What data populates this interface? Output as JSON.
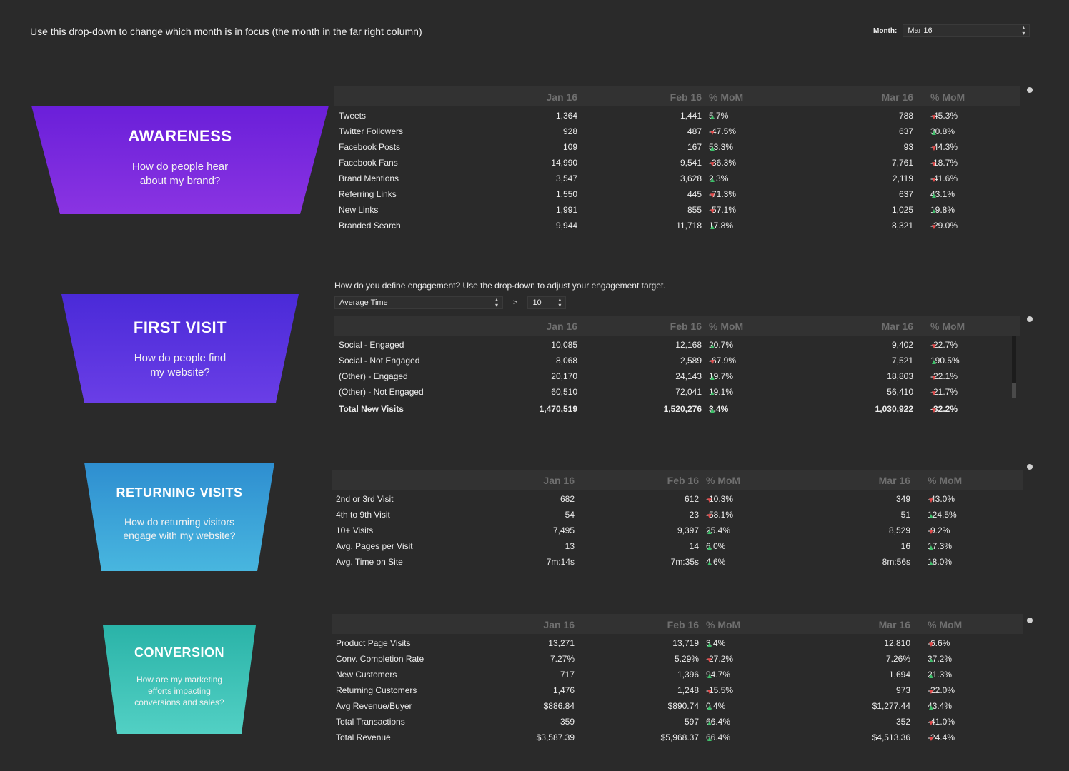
{
  "header": {
    "instruction": "Use this drop-down to change which month is in focus (the month in the far right column)",
    "month_label": "Month:",
    "month_value": "Mar 16"
  },
  "funnels": [
    {
      "title": "AWARENESS",
      "subtitle_l1": "How do people hear",
      "subtitle_l2": "about my brand?",
      "color_top": "#6a1fd9",
      "color_bottom": "#8a34e2"
    },
    {
      "title": "FIRST VISIT",
      "subtitle_l1": "How do people find",
      "subtitle_l2": "my website?",
      "color_top": "#4a2ad8",
      "color_bottom": "#6a3ee6"
    },
    {
      "title": "RETURNING VISITS",
      "subtitle_l1": "How do returning visitors",
      "subtitle_l2": "engage with my website?",
      "color_top": "#2e8ed0",
      "color_bottom": "#48b6df"
    },
    {
      "title": "CONVERSION",
      "subtitle_l1": "How are my marketing",
      "subtitle_l2": "efforts impacting",
      "subtitle_l3": "conversions and sales?",
      "color_top": "#2ab3a8",
      "color_bottom": "#52d0c4"
    }
  ],
  "columns": {
    "jan": "Jan 16",
    "feb": "Feb 16",
    "mom": "% MoM",
    "mar": "Mar 16"
  },
  "engagement": {
    "question": "How do you define engagement? Use the drop-down to adjust your engagement target.",
    "metric": "Average Time",
    "operator": ">",
    "value": "10"
  },
  "awareness_rows": [
    {
      "label": "Tweets",
      "jan": "1,364",
      "feb": "1,441",
      "feb_dir": "up",
      "feb_pct": "5.7%",
      "mar": "788",
      "mar_dir": "dn",
      "mar_pct": "-45.3%"
    },
    {
      "label": "Twitter Followers",
      "jan": "928",
      "feb": "487",
      "feb_dir": "dn",
      "feb_pct": "-47.5%",
      "mar": "637",
      "mar_dir": "up",
      "mar_pct": "30.8%"
    },
    {
      "label": "Facebook Posts",
      "jan": "109",
      "feb": "167",
      "feb_dir": "up",
      "feb_pct": "53.3%",
      "mar": "93",
      "mar_dir": "dn",
      "mar_pct": "-44.3%"
    },
    {
      "label": "Facebook Fans",
      "jan": "14,990",
      "feb": "9,541",
      "feb_dir": "dn",
      "feb_pct": "-36.3%",
      "mar": "7,761",
      "mar_dir": "dn",
      "mar_pct": "-18.7%"
    },
    {
      "label": "Brand Mentions",
      "jan": "3,547",
      "feb": "3,628",
      "feb_dir": "up",
      "feb_pct": "2.3%",
      "mar": "2,119",
      "mar_dir": "dn",
      "mar_pct": "-41.6%"
    },
    {
      "label": "Referring Links",
      "jan": "1,550",
      "feb": "445",
      "feb_dir": "dn",
      "feb_pct": "-71.3%",
      "mar": "637",
      "mar_dir": "up",
      "mar_pct": "43.1%"
    },
    {
      "label": "New Links",
      "jan": "1,991",
      "feb": "855",
      "feb_dir": "dn",
      "feb_pct": "-57.1%",
      "mar": "1,025",
      "mar_dir": "up",
      "mar_pct": "19.8%"
    },
    {
      "label": "Branded Search",
      "jan": "9,944",
      "feb": "11,718",
      "feb_dir": "up",
      "feb_pct": "17.8%",
      "mar": "8,321",
      "mar_dir": "dn",
      "mar_pct": "-29.0%"
    }
  ],
  "firstvisit_rows": [
    {
      "label": "Social - Engaged",
      "jan": "10,085",
      "feb": "12,168",
      "feb_dir": "up",
      "feb_pct": "20.7%",
      "mar": "9,402",
      "mar_dir": "dn",
      "mar_pct": "-22.7%"
    },
    {
      "label": "Social - Not Engaged",
      "jan": "8,068",
      "feb": "2,589",
      "feb_dir": "dn",
      "feb_pct": "-67.9%",
      "mar": "7,521",
      "mar_dir": "up",
      "mar_pct": "190.5%"
    },
    {
      "label": "(Other) - Engaged",
      "jan": "20,170",
      "feb": "24,143",
      "feb_dir": "up",
      "feb_pct": "19.7%",
      "mar": "18,803",
      "mar_dir": "dn",
      "mar_pct": "-22.1%"
    },
    {
      "label": "(Other) - Not Engaged",
      "jan": "60,510",
      "feb": "72,041",
      "feb_dir": "up",
      "feb_pct": "19.1%",
      "mar": "56,410",
      "mar_dir": "dn",
      "mar_pct": "-21.7%"
    }
  ],
  "firstvisit_total": {
    "label": "Total New Visits",
    "jan": "1,470,519",
    "feb": "1,520,276",
    "feb_dir": "up",
    "feb_pct": "3.4%",
    "mar": "1,030,922",
    "mar_dir": "dn",
    "mar_pct": "-32.2%"
  },
  "returning_rows": [
    {
      "label": "2nd or 3rd Visit",
      "jan": "682",
      "feb": "612",
      "feb_dir": "dn",
      "feb_pct": "-10.3%",
      "mar": "349",
      "mar_dir": "dn",
      "mar_pct": "-43.0%"
    },
    {
      "label": "4th to 9th Visit",
      "jan": "54",
      "feb": "23",
      "feb_dir": "dn",
      "feb_pct": "-58.1%",
      "mar": "51",
      "mar_dir": "up",
      "mar_pct": "124.5%"
    },
    {
      "label": "10+ Visits",
      "jan": "7,495",
      "feb": "9,397",
      "feb_dir": "up",
      "feb_pct": "25.4%",
      "mar": "8,529",
      "mar_dir": "dn",
      "mar_pct": "-9.2%"
    },
    {
      "label": "Avg. Pages per Visit",
      "jan": "13",
      "feb": "14",
      "feb_dir": "up",
      "feb_pct": "6.0%",
      "mar": "16",
      "mar_dir": "up",
      "mar_pct": "17.3%"
    },
    {
      "label": "Avg. Time on Site",
      "jan": "7m:14s",
      "feb": "7m:35s",
      "feb_dir": "up",
      "feb_pct": "4.6%",
      "mar": "8m:56s",
      "mar_dir": "up",
      "mar_pct": "18.0%"
    }
  ],
  "conversion_rows": [
    {
      "label": "Product Page Visits",
      "jan": "13,271",
      "feb": "13,719",
      "feb_dir": "up",
      "feb_pct": "3.4%",
      "mar": "12,810",
      "mar_dir": "dn",
      "mar_pct": "-6.6%"
    },
    {
      "label": "Conv. Completion Rate",
      "jan": "7.27%",
      "feb": "5.29%",
      "feb_dir": "dn",
      "feb_pct": "-27.2%",
      "mar": "7.26%",
      "mar_dir": "up",
      "mar_pct": "37.2%"
    },
    {
      "label": "New Customers",
      "jan": "717",
      "feb": "1,396",
      "feb_dir": "up",
      "feb_pct": "94.7%",
      "mar": "1,694",
      "mar_dir": "up",
      "mar_pct": "21.3%"
    },
    {
      "label": "Returning Customers",
      "jan": "1,476",
      "feb": "1,248",
      "feb_dir": "dn",
      "feb_pct": "-15.5%",
      "mar": "973",
      "mar_dir": "dn",
      "mar_pct": "-22.0%"
    },
    {
      "label": "Avg Revenue/Buyer",
      "jan": "$886.84",
      "feb": "$890.74",
      "feb_dir": "up",
      "feb_pct": "0.4%",
      "mar": "$1,277.44",
      "mar_dir": "up",
      "mar_pct": "43.4%"
    },
    {
      "label": "Total Transactions",
      "jan": "359",
      "feb": "597",
      "feb_dir": "up",
      "feb_pct": "66.4%",
      "mar": "352",
      "mar_dir": "dn",
      "mar_pct": "-41.0%"
    },
    {
      "label": "Total Revenue",
      "jan": "$3,587.39",
      "feb": "$5,968.37",
      "feb_dir": "up",
      "feb_pct": "66.4%",
      "mar": "$4,513.36",
      "mar_dir": "dn",
      "mar_pct": "-24.4%"
    }
  ]
}
